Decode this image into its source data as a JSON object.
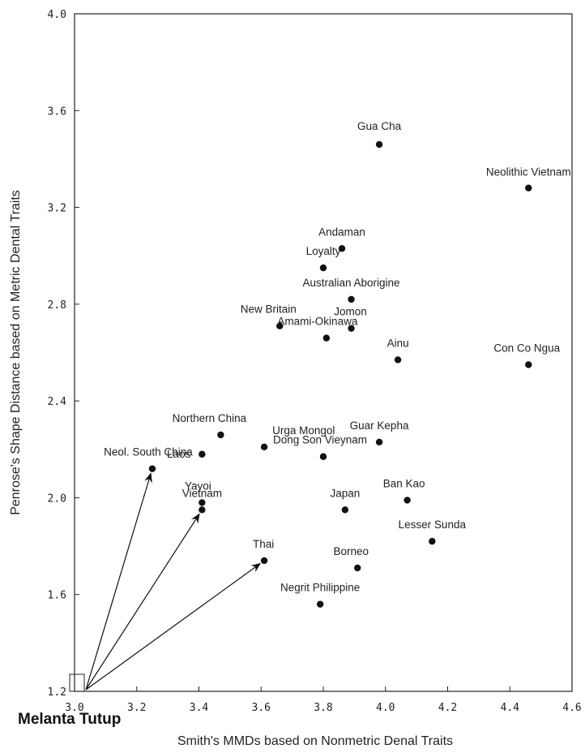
{
  "chart_data": {
    "type": "scatter",
    "xlabel": "Smith's MMDs based on Nonmetric Denal Traits",
    "ylabel": "Penrose's Shape Distance based on Metric Dental Traits",
    "xlim": [
      3.0,
      4.6
    ],
    "ylim": [
      1.2,
      4.0
    ],
    "x_ticks": [
      3.0,
      3.2,
      3.4,
      3.6,
      3.8,
      4.0,
      4.2,
      4.4,
      4.6
    ],
    "x_tick_labels": [
      "3.0",
      "3.2",
      "3.4",
      "3.6",
      "3.8",
      "4.0",
      "4.2",
      "4.4",
      "4.6"
    ],
    "y_ticks": [
      1.2,
      1.6,
      2.0,
      2.4,
      2.8,
      3.2,
      3.6,
      4.0
    ],
    "y_tick_labels": [
      "1.2",
      "1.6",
      "2.0",
      "2.4",
      "2.8",
      "3.2",
      "3.6",
      "4.0"
    ],
    "grid": false,
    "origin_label": "Melanta Tutup",
    "points": [
      {
        "label": "Gua Cha",
        "x": 3.98,
        "y": 3.46
      },
      {
        "label": "Neolithic Vietnam",
        "x": 4.46,
        "y": 3.28
      },
      {
        "label": "Andaman",
        "x": 3.86,
        "y": 3.03
      },
      {
        "label": "Loyalty",
        "x": 3.8,
        "y": 2.95
      },
      {
        "label": "Australian Aborigine",
        "x": 3.89,
        "y": 2.82
      },
      {
        "label": "New Britain",
        "x": 3.66,
        "y": 2.71
      },
      {
        "label": "Jomon",
        "x": 3.89,
        "y": 2.7
      },
      {
        "label": "Amami-Okinawa",
        "x": 3.81,
        "y": 2.66
      },
      {
        "label": "Ainu",
        "x": 4.04,
        "y": 2.57
      },
      {
        "label": "Con Co Ngua",
        "x": 4.46,
        "y": 2.55
      },
      {
        "label": "Northern China",
        "x": 3.47,
        "y": 2.26
      },
      {
        "label": "Urga Mongol",
        "x": 3.61,
        "y": 2.21
      },
      {
        "label": "Guar Kepha",
        "x": 3.98,
        "y": 2.23
      },
      {
        "label": "Laos",
        "x": 3.41,
        "y": 2.18
      },
      {
        "label": "Dong Son Vieynam",
        "x": 3.8,
        "y": 2.17
      },
      {
        "label": "Neol. South China",
        "x": 3.25,
        "y": 2.12
      },
      {
        "label": "Yayoi",
        "x": 3.41,
        "y": 1.98
      },
      {
        "label": "Vietnam",
        "x": 3.41,
        "y": 1.95
      },
      {
        "label": "Ban Kao",
        "x": 4.07,
        "y": 1.99
      },
      {
        "label": "Japan",
        "x": 3.87,
        "y": 1.95
      },
      {
        "label": "Lesser Sunda",
        "x": 4.15,
        "y": 1.82
      },
      {
        "label": "Thai",
        "x": 3.61,
        "y": 1.74
      },
      {
        "label": "Borneo",
        "x": 3.91,
        "y": 1.71
      },
      {
        "label": "Negrit Philippine",
        "x": 3.79,
        "y": 1.56
      }
    ],
    "arrows": [
      {
        "to": "Neol. South China"
      },
      {
        "to": "Vietnam"
      },
      {
        "to": "Thai"
      }
    ]
  }
}
